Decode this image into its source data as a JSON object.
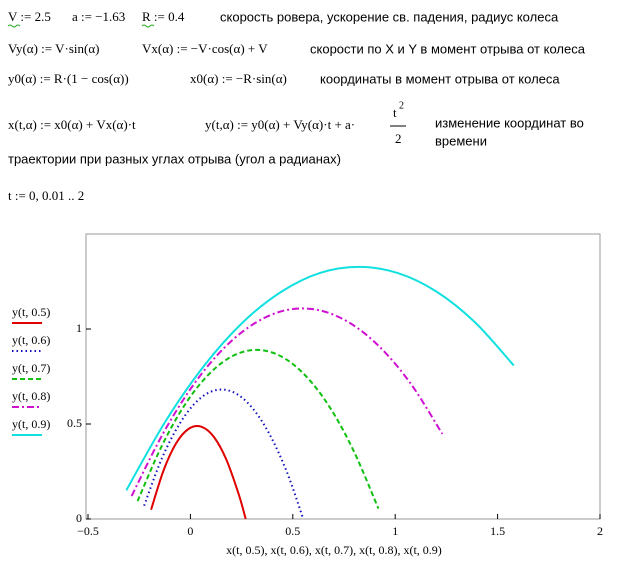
{
  "worksheet": {
    "row1": {
      "v": "V := 2.5",
      "a": "a := −1.63",
      "r": "R := 0.4",
      "note": "скорость ровера, ускорение св. падения, радиус колеса"
    },
    "row2": {
      "vy": "Vy(α) := V·sin(α)",
      "vx": "Vx(α) := −V·cos(α) + V",
      "note": "скорости по X и Y в момент отрыва от колеса"
    },
    "row3": {
      "y0": "y0(α) := R·(1 − cos(α))",
      "x0": "x0(α) := −R·sin(α)",
      "note": "координаты в момент отрыва от колеса"
    },
    "row4": {
      "x": "x(t,α) := x0(α) + Vx(α)·t",
      "y": "y(t,α) := y0(α) + Vy(α)·t + a·",
      "num": "t",
      "exp": "2",
      "den": "2",
      "note": [
        "изменение координат во",
        "времени"
      ]
    },
    "row5": "траектории при разных углах отрыва (угол а радианах)",
    "row6": "t := 0, 0.01 .. 2"
  },
  "chart_data": {
    "type": "line",
    "x_label": "x(t, 0.5), x(t, 0.6), x(t, 0.7), x(t, 0.8), x(t, 0.9)",
    "xlim": [
      -0.5,
      2
    ],
    "ylim": [
      0,
      1.5
    ],
    "xticks": [
      {
        "value": -0.5,
        "label": "−0.5"
      },
      0,
      0.5,
      1,
      1.5,
      2
    ],
    "yticks": [
      0,
      0.5,
      1
    ],
    "grid": false,
    "series": [
      {
        "name": "y(t, 0.5)",
        "color": "#e00000",
        "style": "solid",
        "x": [
          -0.192,
          -0.131,
          -0.07,
          -0.008,
          0.053,
          0.114,
          0.175,
          0.236,
          0.27
        ],
        "values": [
          0.049,
          0.256,
          0.398,
          0.475,
          0.486,
          0.433,
          0.314,
          0.13,
          0
        ]
      },
      {
        "name": "y(t, 0.6)",
        "color": "#1010c0",
        "style": "dotted",
        "x": [
          -0.226,
          -0.139,
          -0.051,
          0.036,
          0.123,
          0.211,
          0.298,
          0.385,
          0.473,
          0.551
        ],
        "values": [
          0.07,
          0.32,
          0.504,
          0.624,
          0.678,
          0.667,
          0.59,
          0.449,
          0.242,
          0
        ]
      },
      {
        "name": "y(t, 0.7)",
        "color": "#10c010",
        "style": "dashed",
        "x": [
          -0.258,
          -0.14,
          -0.023,
          0.095,
          0.212,
          0.33,
          0.448,
          0.565,
          0.683,
          0.8,
          0.918
        ],
        "values": [
          0.094,
          0.384,
          0.608,
          0.767,
          0.861,
          0.89,
          0.853,
          0.751,
          0.584,
          0.352,
          0.055
        ]
      },
      {
        "name": "y(t, 0.8)",
        "color": "#d010d0",
        "style": "dashdot",
        "x": [
          -0.287,
          -0.135,
          0.016,
          0.168,
          0.32,
          0.471,
          0.623,
          0.775,
          0.926,
          1.078,
          1.23
        ],
        "values": [
          0.121,
          0.447,
          0.708,
          0.904,
          1.034,
          1.1,
          1.1,
          1.034,
          0.904,
          0.709,
          0.448
        ]
      },
      {
        "name": "y(t, 0.9)",
        "color": "#10e0e0",
        "style": "solid",
        "x": [
          -0.313,
          -0.124,
          0.065,
          0.254,
          0.444,
          0.633,
          0.822,
          1.011,
          1.2,
          1.39,
          1.579
        ],
        "values": [
          0.151,
          0.51,
          0.804,
          1.033,
          1.196,
          1.295,
          1.327,
          1.295,
          1.198,
          1.035,
          0.808
        ]
      }
    ]
  }
}
